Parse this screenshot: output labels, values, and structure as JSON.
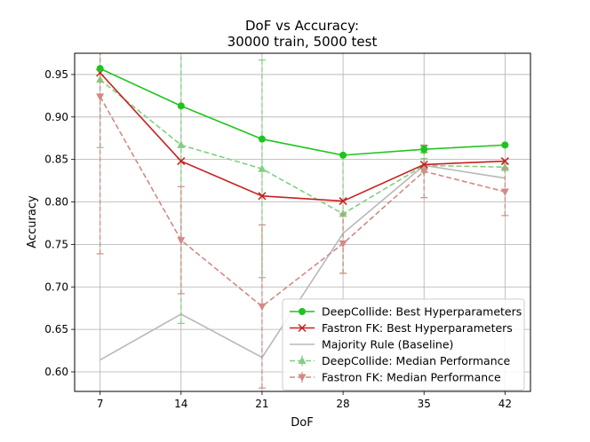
{
  "chart_data": {
    "type": "line",
    "title_line1": "DoF vs Accuracy:",
    "title_line2": "30000 train, 5000 test",
    "xlabel": "DoF",
    "ylabel": "Accuracy",
    "x": [
      7,
      14,
      21,
      28,
      35,
      42
    ],
    "xlim": [
      4.8,
      44.2
    ],
    "ylim": [
      0.577,
      0.975
    ],
    "yticks": [
      0.6,
      0.65,
      0.7,
      0.75,
      0.8,
      0.85,
      0.9,
      0.95
    ],
    "xticks": [
      7,
      14,
      21,
      28,
      35,
      42
    ],
    "grid": true,
    "legend_position": "lower-right",
    "series": [
      {
        "name": "DeepCollide: Best Hyperparameters",
        "values": [
          0.957,
          0.913,
          0.874,
          0.855,
          0.862,
          0.867
        ],
        "color": "#1fc41f",
        "style": "solid",
        "marker": "circle",
        "errors": [
          null,
          null,
          null,
          null,
          0.004,
          null
        ]
      },
      {
        "name": "Fastron FK: Best Hyperparameters",
        "values": [
          0.952,
          0.848,
          0.807,
          0.801,
          0.844,
          0.848
        ],
        "color": "#c82020",
        "style": "solid",
        "marker": "x"
      },
      {
        "name": "Majority Rule (Baseline)",
        "values": [
          0.614,
          0.668,
          0.617,
          0.763,
          0.843,
          0.828
        ],
        "color": "#b8b8b8",
        "style": "solid",
        "marker": "none"
      },
      {
        "name": "DeepCollide: Median Performance",
        "values": [
          0.944,
          0.867,
          0.839,
          0.786,
          0.843,
          0.841
        ],
        "color": "#7fd07f",
        "style": "dashed",
        "marker": "triangle-up",
        "errors": [
          0.08,
          0.21,
          0.128,
          0.07,
          0.008,
          0.004
        ]
      },
      {
        "name": "Fastron FK: Median Performance",
        "values": [
          0.924,
          0.755,
          0.677,
          0.751,
          0.836,
          0.812
        ],
        "color": "#d28a86",
        "style": "dashed",
        "marker": "triangle-down",
        "errors": [
          0.185,
          0.063,
          0.096,
          0.035,
          0.031,
          0.028
        ]
      }
    ]
  }
}
